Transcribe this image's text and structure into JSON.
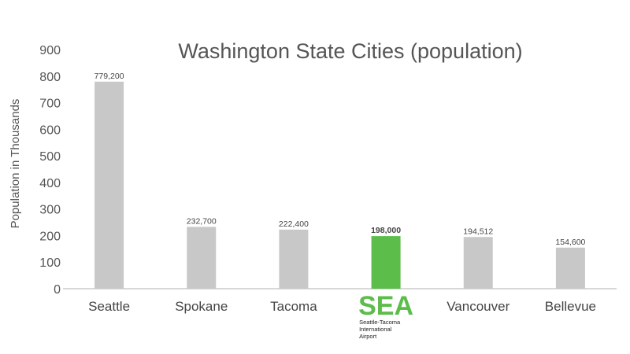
{
  "chart_data": {
    "type": "bar",
    "title": "Washington State Cities (population)",
    "ylabel": "Population in Thousands",
    "xlabel": "",
    "ylim": [
      0,
      900
    ],
    "yticks": [
      0,
      100,
      200,
      300,
      400,
      500,
      600,
      700,
      800,
      900
    ],
    "grid": false,
    "categories": [
      "Seattle",
      "Spokane",
      "Tacoma",
      "SEA",
      "Vancouver",
      "Bellevue"
    ],
    "values": [
      779.2,
      232.7,
      222.4,
      198.0,
      194.512,
      154.6
    ],
    "data_labels": [
      "779,200",
      "232,700",
      "222,400",
      "198,000",
      "194,512",
      "154,600"
    ],
    "highlight_index": 3,
    "colors": {
      "bar": "#c8c8c8",
      "highlight": "#5cbd4b",
      "axis": "#cccccc"
    }
  },
  "logo": {
    "icon": "sea-airport-logo",
    "text": "SEA",
    "subtitle_lines": [
      "Seattle-Tacoma",
      "International",
      "Airport"
    ]
  }
}
